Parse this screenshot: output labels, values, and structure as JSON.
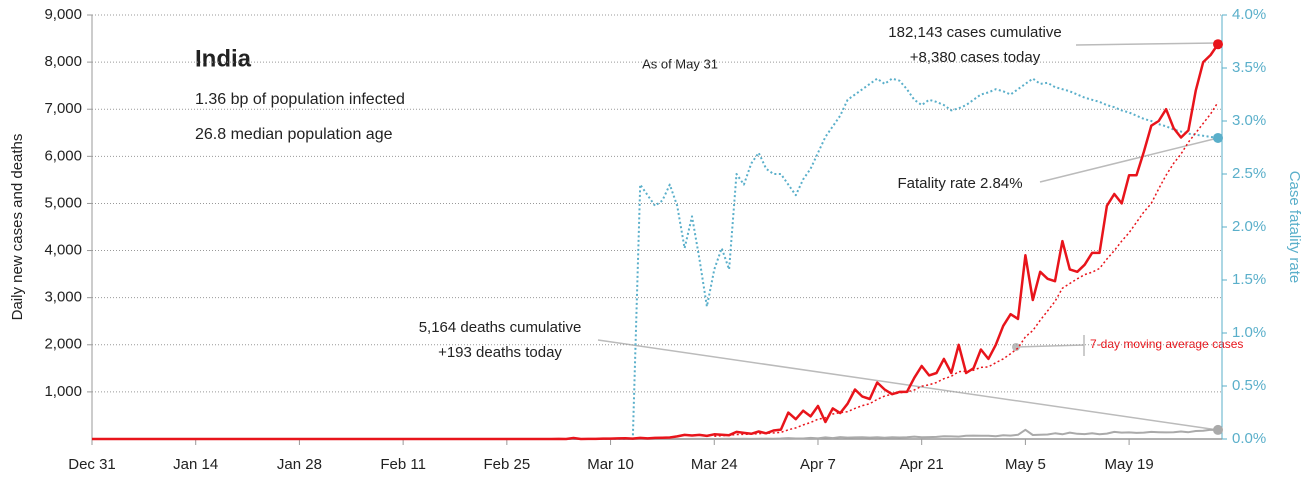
{
  "chart_data": {
    "type": "line",
    "title": "India",
    "subtitle": [
      "1.36 bp of population infected",
      "26.8 median population age"
    ],
    "date_note": "As of May 31",
    "ylabel": "Daily new cases and deaths",
    "y2label": "Case fatality rate",
    "annotations": {
      "cases": [
        "182,143 cases cumulative",
        "+8,380 cases today"
      ],
      "fatality": "Fatality rate 2.84%",
      "deaths": [
        "5,164 deaths cumulative",
        "+193 deaths today"
      ]
    },
    "grid": true,
    "ylim": [
      0,
      9000
    ],
    "yticks": [
      {
        "value": 1000,
        "label": "1,000"
      },
      {
        "value": 2000,
        "label": "2,000"
      },
      {
        "value": 3000,
        "label": "3,000"
      },
      {
        "value": 4000,
        "label": "4,000"
      },
      {
        "value": 5000,
        "label": "5,000"
      },
      {
        "value": 6000,
        "label": "6,000"
      },
      {
        "value": 7000,
        "label": "7,000"
      },
      {
        "value": 8000,
        "label": "8,000"
      },
      {
        "value": 9000,
        "label": "9,000"
      }
    ],
    "y2lim": [
      0,
      4
    ],
    "y2ticks": [
      {
        "value": 0,
        "label": "0.0%"
      },
      {
        "value": 0.5,
        "label": "0.5%"
      },
      {
        "value": 1,
        "label": "1.0%"
      },
      {
        "value": 1.5,
        "label": "1.5%"
      },
      {
        "value": 2,
        "label": "2.0%"
      },
      {
        "value": 2.5,
        "label": "2.5%"
      },
      {
        "value": 3,
        "label": "3.0%"
      },
      {
        "value": 3.5,
        "label": "3.5%"
      },
      {
        "value": 4,
        "label": "4.0%"
      }
    ],
    "categories": [
      "Dec 31",
      null,
      null,
      null,
      null,
      null,
      null,
      null,
      null,
      null,
      null,
      null,
      null,
      null,
      "Jan 14",
      null,
      null,
      null,
      null,
      null,
      null,
      null,
      null,
      null,
      null,
      null,
      null,
      null,
      "Jan 28",
      null,
      null,
      null,
      null,
      null,
      null,
      null,
      null,
      null,
      null,
      null,
      null,
      null,
      "Feb 11",
      null,
      null,
      null,
      null,
      null,
      null,
      null,
      null,
      null,
      null,
      null,
      null,
      null,
      "Feb 25",
      null,
      null,
      null,
      null,
      null,
      null,
      null,
      null,
      null,
      null,
      null,
      null,
      null,
      "Mar 10",
      null,
      null,
      null,
      null,
      null,
      null,
      null,
      null,
      null,
      null,
      null,
      null,
      null,
      "Mar 24",
      null,
      null,
      null,
      null,
      null,
      null,
      null,
      null,
      null,
      null,
      null,
      null,
      null,
      "Apr 7",
      null,
      null,
      null,
      null,
      null,
      null,
      null,
      null,
      null,
      null,
      null,
      null,
      null,
      "Apr 21",
      null,
      null,
      null,
      null,
      null,
      null,
      null,
      null,
      null,
      null,
      null,
      null,
      null,
      "May 5",
      null,
      null,
      null,
      null,
      null,
      null,
      null,
      null,
      null,
      null,
      null,
      null,
      null,
      "May 19",
      null,
      null,
      null,
      null,
      null,
      null,
      null,
      null,
      null,
      null,
      null,
      null
    ],
    "series": [
      {
        "color": "#aaaaaa",
        "style": "solid",
        "width": 2,
        "values": [
          0,
          0,
          0,
          0,
          0,
          0,
          0,
          0,
          0,
          0,
          0,
          0,
          0,
          0,
          0,
          0,
          0,
          0,
          0,
          0,
          0,
          0,
          0,
          0,
          0,
          0,
          0,
          0,
          0,
          0,
          0,
          0,
          0,
          0,
          0,
          0,
          0,
          0,
          0,
          0,
          0,
          0,
          0,
          0,
          0,
          0,
          0,
          0,
          0,
          0,
          0,
          0,
          0,
          0,
          0,
          0,
          0,
          0,
          0,
          0,
          0,
          0,
          0,
          0,
          0,
          0,
          0,
          0,
          0,
          0,
          0,
          1,
          1,
          0,
          0,
          1,
          0,
          1,
          1,
          0,
          1,
          3,
          2,
          2,
          1,
          2,
          4,
          3,
          6,
          2,
          5,
          9,
          6,
          11,
          20,
          11,
          10,
          24,
          13,
          35,
          20,
          40,
          30,
          35,
          38,
          30,
          36,
          27,
          36,
          32,
          36,
          50,
          39,
          41,
          45,
          60,
          56,
          50,
          69,
          73,
          68,
          71,
          60,
          80,
          72,
          90,
          195,
          85,
          90,
          95,
          120,
          100,
          135,
          110,
          105,
          120,
          100,
          115,
          150,
          135,
          140,
          130,
          135,
          150,
          145,
          140,
          145,
          160,
          145,
          170,
          175,
          195,
          193
        ]
      },
      {
        "color": "#5aafca",
        "style": "dotted",
        "width": 2,
        "axis": "y2",
        "values": [
          0,
          0,
          0,
          0,
          0,
          0,
          0,
          0,
          0,
          0,
          0,
          0,
          0,
          0,
          0,
          0,
          0,
          0,
          0,
          0,
          0,
          0,
          0,
          0,
          0,
          0,
          0,
          0,
          0,
          0,
          0,
          0,
          0,
          0,
          0,
          0,
          0,
          0,
          0,
          0,
          0,
          0,
          0,
          0,
          0,
          0,
          0,
          0,
          0,
          0,
          0,
          0,
          0,
          0,
          0,
          0,
          0,
          0,
          0,
          0,
          0,
          0,
          0,
          0,
          0,
          0,
          0,
          0,
          0,
          0,
          0,
          0,
          0,
          0,
          2.4,
          2.3,
          2.2,
          2.25,
          2.4,
          2.2,
          1.8,
          2.1,
          1.7,
          1.25,
          1.6,
          1.8,
          1.6,
          2.5,
          2.4,
          2.6,
          2.7,
          2.55,
          2.5,
          2.5,
          2.4,
          2.3,
          2.45,
          2.55,
          2.7,
          2.85,
          2.95,
          3.05,
          3.2,
          3.25,
          3.3,
          3.35,
          3.4,
          3.35,
          3.4,
          3.38,
          3.3,
          3.2,
          3.15,
          3.2,
          3.18,
          3.15,
          3.1,
          3.12,
          3.15,
          3.2,
          3.25,
          3.27,
          3.3,
          3.28,
          3.25,
          3.3,
          3.35,
          3.4,
          3.35,
          3.36,
          3.32,
          3.3,
          3.28,
          3.25,
          3.22,
          3.2,
          3.18,
          3.15,
          3.13,
          3.1,
          3.08,
          3.05,
          3.02,
          3.0,
          2.97,
          2.95,
          2.92,
          2.9,
          2.88,
          2.87,
          2.86,
          2.85,
          2.84
        ]
      },
      {
        "name": "7-day moving average cases",
        "color": "#e8141b",
        "style": "dotted",
        "width": 1.5,
        "values": [
          null,
          null,
          null,
          null,
          null,
          null,
          null,
          null,
          null,
          null,
          null,
          null,
          null,
          null,
          null,
          null,
          null,
          null,
          null,
          null,
          null,
          null,
          null,
          null,
          null,
          null,
          null,
          null,
          null,
          null,
          null,
          null,
          null,
          null,
          null,
          null,
          null,
          null,
          null,
          null,
          null,
          null,
          null,
          null,
          null,
          null,
          null,
          null,
          null,
          null,
          null,
          null,
          null,
          null,
          null,
          null,
          null,
          null,
          null,
          null,
          null,
          null,
          null,
          null,
          null,
          null,
          null,
          null,
          null,
          null,
          null,
          null,
          null,
          null,
          null,
          null,
          null,
          null,
          null,
          null,
          null,
          null,
          null,
          null,
          60,
          70,
          80,
          95,
          100,
          105,
          115,
          120,
          130,
          140,
          195,
          235,
          300,
          350,
          420,
          450,
          530,
          560,
          580,
          650,
          710,
          750,
          840,
          910,
          950,
          980,
          1000,
          1040,
          1120,
          1150,
          1200,
          1280,
          1330,
          1430,
          1440,
          1460,
          1520,
          1530,
          1620,
          1700,
          1810,
          1930,
          2170,
          2300,
          2520,
          2720,
          2920,
          3200,
          3300,
          3400,
          3490,
          3540,
          3620,
          3820,
          4000,
          4200,
          4380,
          4600,
          4820,
          5000,
          5310,
          5600,
          5850,
          6050,
          6300,
          6500,
          6700,
          6900,
          7150
        ]
      },
      {
        "color": "#e8141b",
        "style": "solid",
        "width": 2.5,
        "values": [
          0,
          0,
          0,
          0,
          0,
          0,
          0,
          0,
          0,
          0,
          0,
          0,
          0,
          0,
          0,
          0,
          0,
          0,
          0,
          0,
          0,
          0,
          0,
          0,
          0,
          0,
          0,
          0,
          0,
          0,
          0,
          0,
          0,
          0,
          0,
          0,
          0,
          0,
          0,
          0,
          0,
          0,
          0,
          0,
          0,
          0,
          0,
          0,
          0,
          0,
          0,
          0,
          0,
          0,
          0,
          0,
          0,
          0,
          0,
          0,
          0,
          0,
          1,
          2,
          0,
          22,
          1,
          3,
          3,
          9,
          9,
          12,
          14,
          8,
          23,
          12,
          24,
          28,
          31,
          55,
          86,
          74,
          86,
          66,
          100,
          90,
          80,
          150,
          130,
          110,
          160,
          120,
          180,
          200,
          560,
          420,
          600,
          480,
          700,
          360,
          650,
          550,
          750,
          1050,
          900,
          850,
          1200,
          1050,
          950,
          1000,
          1000,
          1300,
          1550,
          1350,
          1400,
          1700,
          1400,
          2000,
          1400,
          1500,
          1900,
          1700,
          2000,
          2400,
          2650,
          2550,
          3900,
          2950,
          3550,
          3400,
          3350,
          4200,
          3600,
          3550,
          3700,
          3950,
          3950,
          4950,
          5200,
          5000,
          5600,
          5600,
          6100,
          6650,
          6750,
          7000,
          6600,
          6400,
          6550,
          7400,
          8000,
          8150,
          8380
        ]
      }
    ]
  }
}
